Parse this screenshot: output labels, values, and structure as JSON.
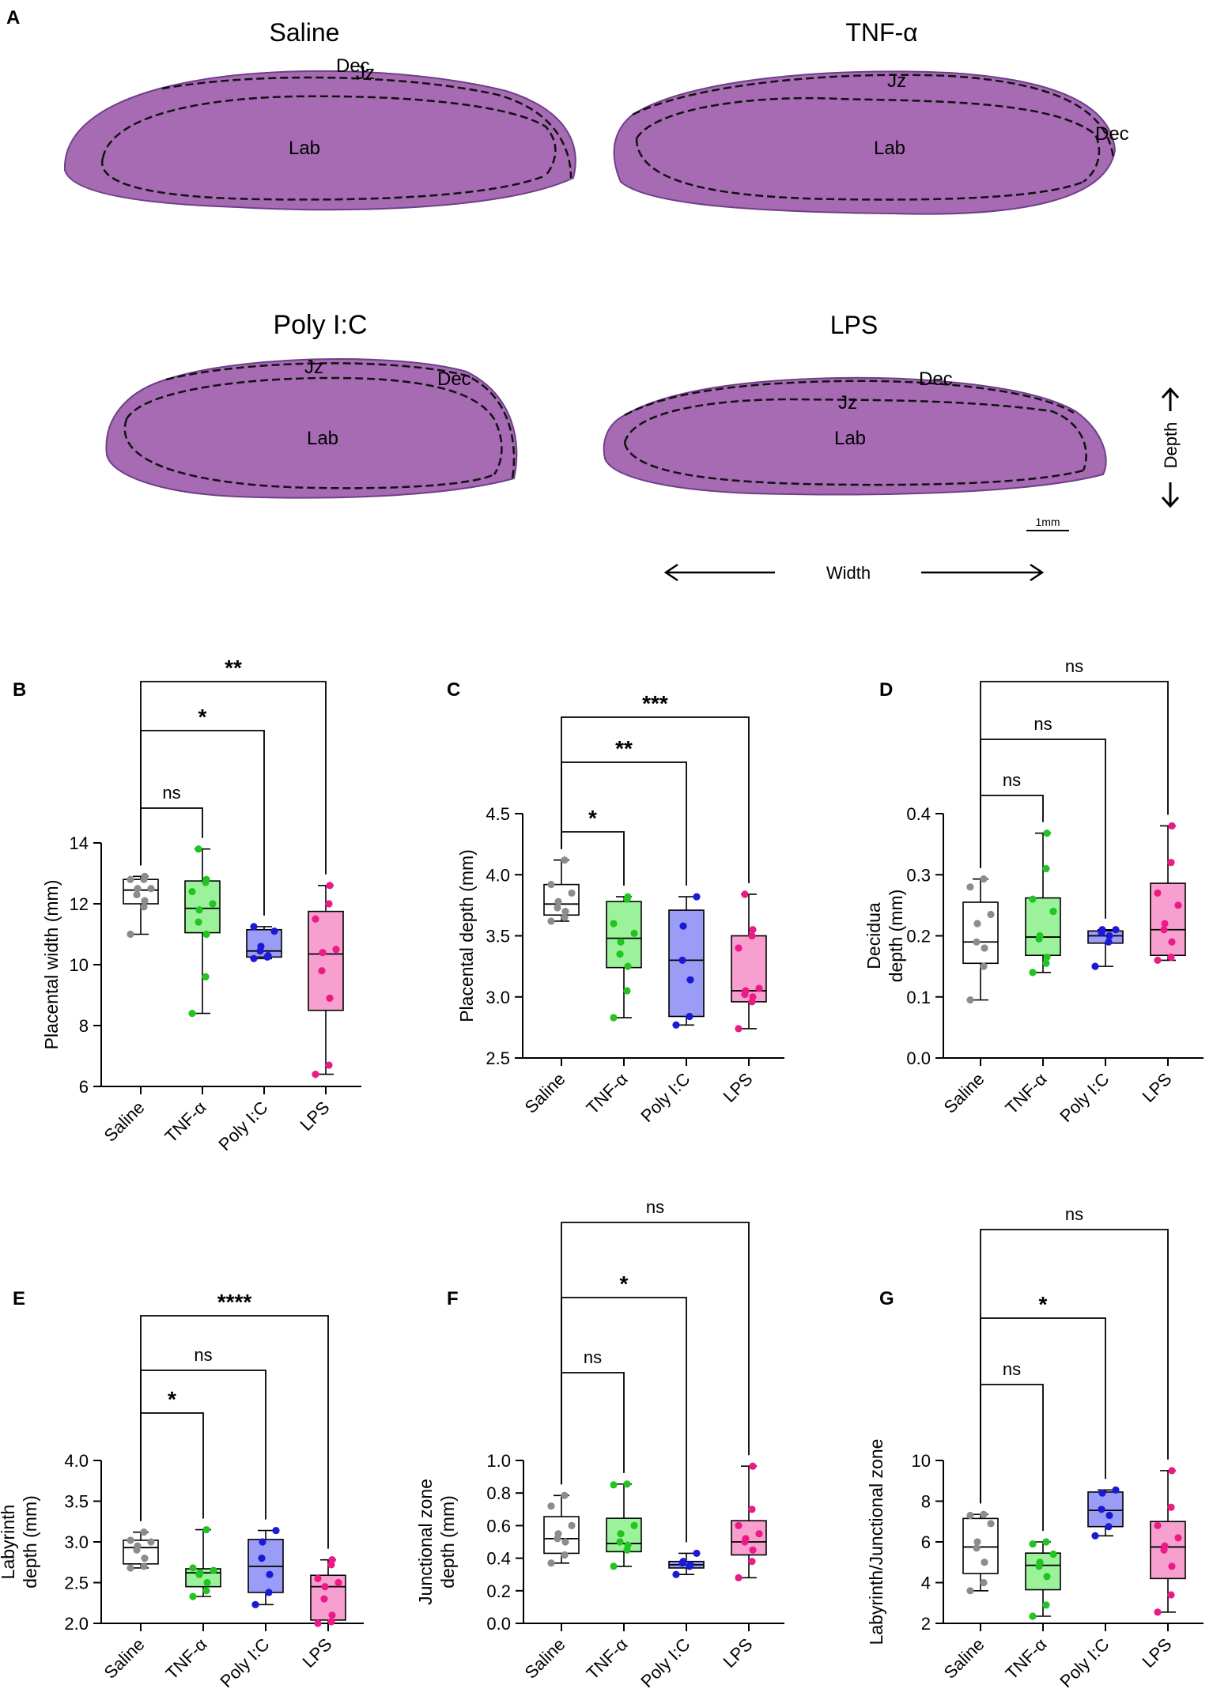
{
  "panel_a": {
    "letter": "A",
    "sections": [
      {
        "title": "Saline",
        "zones": {
          "dec": "Dec",
          "jz": "Jz",
          "lab": "Lab"
        }
      },
      {
        "title": "TNF-α",
        "zones": {
          "dec": "Dec",
          "jz": "Jz",
          "lab": "Lab"
        }
      },
      {
        "title": "Poly I:C",
        "zones": {
          "dec": "Dec",
          "jz": "Jz",
          "lab": "Lab"
        }
      },
      {
        "title": "LPS",
        "zones": {
          "dec": "Dec",
          "jz": "Jz",
          "lab": "Lab"
        }
      }
    ],
    "depth_label": "Depth",
    "width_label": "Width",
    "scale_bar_label": "1mm"
  },
  "colors": {
    "Saline": {
      "fill": "#ffffff",
      "dot": "#8c8c8c"
    },
    "TNF-α": {
      "fill": "#9cf29a",
      "dot": "#22c322"
    },
    "Poly I:C": {
      "fill": "#9a9cf6",
      "dot": "#1a1ad6"
    },
    "LPS": {
      "fill": "#f7a0cf",
      "dot": "#ec1a86"
    },
    "tissue": "#a66bb3",
    "tissue_dark": "#6f3f88"
  },
  "chart_data": [
    {
      "letter": "B",
      "type": "box",
      "ylabel": "Placental width  (mm)",
      "ylim": [
        6,
        14
      ],
      "yticks": [
        "6",
        "8",
        "10",
        "12",
        "14"
      ],
      "categories": [
        "Saline",
        "TNF-α",
        "Poly I:C",
        "LPS"
      ],
      "boxes": [
        {
          "min": 11.0,
          "q1": 12.0,
          "median": 12.45,
          "q3": 12.8,
          "max": 12.9,
          "points": [
            11.0,
            11.9,
            12.1,
            12.3,
            12.5,
            12.5,
            12.8,
            12.8,
            12.9
          ]
        },
        {
          "min": 8.4,
          "q1": 11.05,
          "median": 11.85,
          "q3": 12.75,
          "max": 13.8,
          "points": [
            8.4,
            9.6,
            11.0,
            11.4,
            11.8,
            12.0,
            12.4,
            12.7,
            12.8,
            13.8
          ]
        },
        {
          "min": 10.2,
          "q1": 10.25,
          "median": 10.45,
          "q3": 11.15,
          "max": 11.25,
          "points": [
            10.2,
            10.25,
            10.3,
            10.45,
            10.6,
            11.1,
            11.25
          ]
        },
        {
          "min": 6.4,
          "q1": 8.5,
          "median": 10.35,
          "q3": 11.75,
          "max": 12.6,
          "points": [
            6.4,
            6.7,
            8.9,
            9.8,
            10.4,
            10.5,
            11.5,
            12.0,
            12.6
          ]
        }
      ],
      "brackets": [
        {
          "from": "Saline",
          "to": "TNF-α",
          "label": "ns"
        },
        {
          "from": "Saline",
          "to": "Poly I:C",
          "label": "*"
        },
        {
          "from": "Saline",
          "to": "LPS",
          "label": "**"
        }
      ]
    },
    {
      "letter": "C",
      "type": "box",
      "ylabel": "Placental depth (mm)",
      "ylim": [
        2.5,
        4.5
      ],
      "yticks": [
        "2.5",
        "3.0",
        "3.5",
        "4.0",
        "4.5"
      ],
      "categories": [
        "Saline",
        "TNF-α",
        "Poly I:C",
        "LPS"
      ],
      "boxes": [
        {
          "min": 3.62,
          "q1": 3.67,
          "median": 3.76,
          "q3": 3.92,
          "max": 4.12,
          "points": [
            3.62,
            3.65,
            3.7,
            3.73,
            3.78,
            3.85,
            3.92,
            4.12
          ]
        },
        {
          "min": 2.83,
          "q1": 3.24,
          "median": 3.48,
          "q3": 3.78,
          "max": 3.82,
          "points": [
            2.83,
            3.05,
            3.25,
            3.35,
            3.45,
            3.52,
            3.6,
            3.8,
            3.82
          ]
        },
        {
          "min": 2.77,
          "q1": 2.84,
          "median": 3.3,
          "q3": 3.71,
          "max": 3.82,
          "points": [
            2.77,
            2.84,
            3.14,
            3.3,
            3.58,
            3.82
          ]
        },
        {
          "min": 2.74,
          "q1": 2.96,
          "median": 3.05,
          "q3": 3.5,
          "max": 3.84,
          "points": [
            2.74,
            2.96,
            3.0,
            3.02,
            3.05,
            3.07,
            3.4,
            3.5,
            3.55,
            3.84
          ]
        }
      ],
      "brackets": [
        {
          "from": "Saline",
          "to": "TNF-α",
          "label": "*"
        },
        {
          "from": "Saline",
          "to": "Poly I:C",
          "label": "**"
        },
        {
          "from": "Saline",
          "to": "LPS",
          "label": "***"
        }
      ]
    },
    {
      "letter": "D",
      "type": "box",
      "ylabel": "Decidua\ndepth (mm)",
      "ylim": [
        0.0,
        0.4
      ],
      "yticks": [
        "0.0",
        "0.1",
        "0.2",
        "0.3",
        "0.4"
      ],
      "categories": [
        "Saline",
        "TNF-α",
        "Poly I:C",
        "LPS"
      ],
      "boxes": [
        {
          "min": 0.095,
          "q1": 0.155,
          "median": 0.19,
          "q3": 0.255,
          "max": 0.293,
          "points": [
            0.095,
            0.15,
            0.18,
            0.19,
            0.22,
            0.235,
            0.28,
            0.293
          ]
        },
        {
          "min": 0.14,
          "q1": 0.168,
          "median": 0.198,
          "q3": 0.262,
          "max": 0.368,
          "points": [
            0.14,
            0.155,
            0.165,
            0.195,
            0.2,
            0.24,
            0.26,
            0.31,
            0.368
          ]
        },
        {
          "min": 0.15,
          "q1": 0.188,
          "median": 0.2,
          "q3": 0.208,
          "max": 0.21,
          "points": [
            0.15,
            0.19,
            0.2,
            0.205,
            0.21,
            0.21
          ]
        },
        {
          "min": 0.16,
          "q1": 0.168,
          "median": 0.21,
          "q3": 0.286,
          "max": 0.38,
          "points": [
            0.16,
            0.165,
            0.19,
            0.21,
            0.22,
            0.25,
            0.27,
            0.32,
            0.38
          ]
        }
      ],
      "brackets": [
        {
          "from": "Saline",
          "to": "TNF-α",
          "label": "ns"
        },
        {
          "from": "Saline",
          "to": "Poly I:C",
          "label": "ns"
        },
        {
          "from": "Saline",
          "to": "LPS",
          "label": "ns"
        }
      ]
    },
    {
      "letter": "E",
      "type": "box",
      "ylabel": "Labyrinth\ndepth (mm)",
      "ylim": [
        2.0,
        4.0
      ],
      "yticks": [
        "2.0",
        "2.5",
        "3.0",
        "3.5",
        "4.0"
      ],
      "categories": [
        "Saline",
        "TNF-α",
        "Poly I:C",
        "LPS"
      ],
      "boxes": [
        {
          "min": 2.68,
          "q1": 2.73,
          "median": 2.93,
          "q3": 3.02,
          "max": 3.12,
          "points": [
            2.68,
            2.7,
            2.8,
            2.9,
            2.95,
            3.0,
            3.02,
            3.12
          ]
        },
        {
          "min": 2.33,
          "q1": 2.45,
          "median": 2.62,
          "q3": 2.67,
          "max": 3.15,
          "points": [
            2.33,
            2.4,
            2.5,
            2.6,
            2.62,
            2.65,
            2.68,
            3.15
          ]
        },
        {
          "min": 2.23,
          "q1": 2.38,
          "median": 2.7,
          "q3": 3.03,
          "max": 3.14,
          "points": [
            2.23,
            2.38,
            2.6,
            2.8,
            3.0,
            3.14
          ]
        },
        {
          "min": 2.0,
          "q1": 2.04,
          "median": 2.45,
          "q3": 2.59,
          "max": 2.78,
          "points": [
            2.0,
            2.02,
            2.1,
            2.3,
            2.45,
            2.5,
            2.55,
            2.72,
            2.78
          ]
        }
      ],
      "brackets": [
        {
          "from": "Saline",
          "to": "TNF-α",
          "label": "*"
        },
        {
          "from": "Saline",
          "to": "Poly I:C",
          "label": "ns"
        },
        {
          "from": "Saline",
          "to": "LPS",
          "label": "****"
        }
      ]
    },
    {
      "letter": "F",
      "type": "box",
      "ylabel": "Junctional zone\ndepth (mm)",
      "ylim": [
        0.0,
        1.0
      ],
      "yticks": [
        "0.0",
        "0.2",
        "0.4",
        "0.6",
        "0.8",
        "1.0"
      ],
      "categories": [
        "Saline",
        "TNF-α",
        "Poly I:C",
        "LPS"
      ],
      "boxes": [
        {
          "min": 0.37,
          "q1": 0.43,
          "median": 0.52,
          "q3": 0.655,
          "max": 0.785,
          "points": [
            0.37,
            0.42,
            0.5,
            0.52,
            0.55,
            0.6,
            0.72,
            0.785
          ]
        },
        {
          "min": 0.35,
          "q1": 0.44,
          "median": 0.49,
          "q3": 0.645,
          "max": 0.855,
          "points": [
            0.35,
            0.45,
            0.48,
            0.5,
            0.55,
            0.6,
            0.85,
            0.855
          ]
        },
        {
          "min": 0.3,
          "q1": 0.34,
          "median": 0.36,
          "q3": 0.38,
          "max": 0.43,
          "points": [
            0.3,
            0.35,
            0.36,
            0.37,
            0.38,
            0.43
          ]
        },
        {
          "min": 0.28,
          "q1": 0.42,
          "median": 0.5,
          "q3": 0.63,
          "max": 0.965,
          "points": [
            0.28,
            0.38,
            0.45,
            0.5,
            0.52,
            0.55,
            0.6,
            0.7,
            0.965
          ]
        }
      ],
      "brackets": [
        {
          "from": "Saline",
          "to": "TNF-α",
          "label": "ns"
        },
        {
          "from": "Saline",
          "to": "Poly I:C",
          "label": "*"
        },
        {
          "from": "Saline",
          "to": "LPS",
          "label": "ns"
        }
      ]
    },
    {
      "letter": "G",
      "type": "box",
      "ylabel": "Labyrinth/Junctional zone",
      "ylim": [
        2,
        10
      ],
      "yticks": [
        "2",
        "4",
        "6",
        "8",
        "10"
      ],
      "categories": [
        "Saline",
        "TNF-α",
        "Poly I:C",
        "LPS"
      ],
      "boxes": [
        {
          "min": 3.6,
          "q1": 4.45,
          "median": 5.75,
          "q3": 7.15,
          "max": 7.35,
          "points": [
            3.6,
            4.0,
            5.0,
            5.7,
            6.0,
            6.9,
            7.3,
            7.35
          ]
        },
        {
          "min": 2.35,
          "q1": 3.65,
          "median": 4.85,
          "q3": 5.45,
          "max": 6.0,
          "points": [
            2.35,
            2.9,
            4.3,
            4.8,
            5.0,
            5.4,
            5.9,
            6.0
          ]
        },
        {
          "min": 6.3,
          "q1": 6.75,
          "median": 7.55,
          "q3": 8.45,
          "max": 8.55,
          "points": [
            6.3,
            6.75,
            7.3,
            7.6,
            8.4,
            8.55
          ]
        },
        {
          "min": 2.55,
          "q1": 4.2,
          "median": 5.75,
          "q3": 7.0,
          "max": 9.5,
          "points": [
            2.55,
            3.4,
            4.8,
            5.6,
            5.8,
            6.2,
            6.8,
            7.7,
            9.5
          ]
        }
      ],
      "brackets": [
        {
          "from": "Saline",
          "to": "TNF-α",
          "label": "ns"
        },
        {
          "from": "Saline",
          "to": "Poly I:C",
          "label": "*"
        },
        {
          "from": "Saline",
          "to": "LPS",
          "label": "ns"
        }
      ]
    }
  ]
}
